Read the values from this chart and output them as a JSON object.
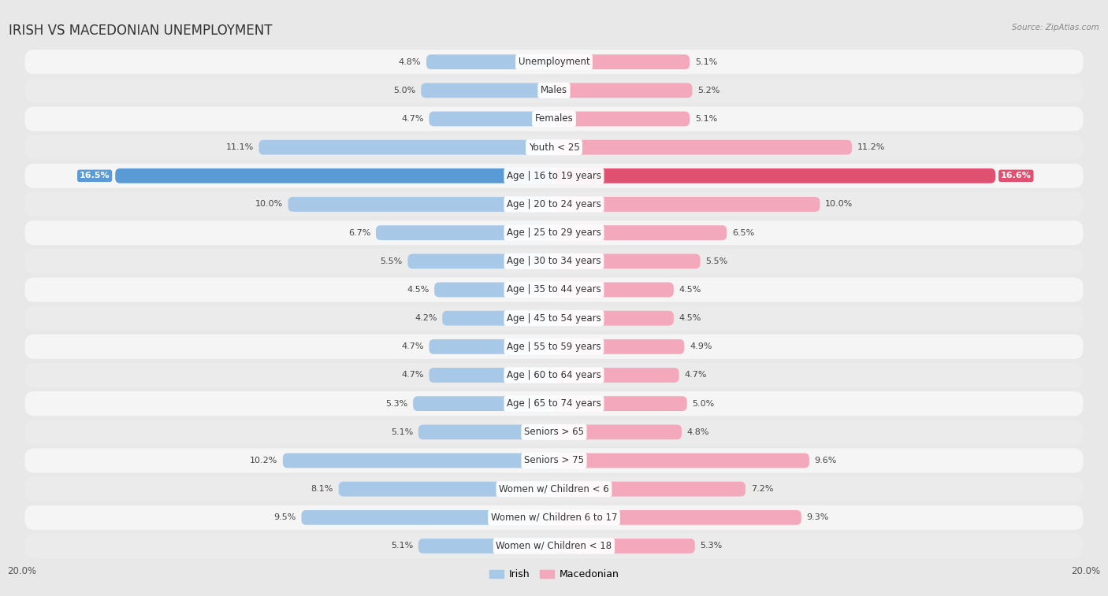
{
  "title": "IRISH VS MACEDONIAN UNEMPLOYMENT",
  "source": "Source: ZipAtlas.com",
  "categories": [
    "Unemployment",
    "Males",
    "Females",
    "Youth < 25",
    "Age | 16 to 19 years",
    "Age | 20 to 24 years",
    "Age | 25 to 29 years",
    "Age | 30 to 34 years",
    "Age | 35 to 44 years",
    "Age | 45 to 54 years",
    "Age | 55 to 59 years",
    "Age | 60 to 64 years",
    "Age | 65 to 74 years",
    "Seniors > 65",
    "Seniors > 75",
    "Women w/ Children < 6",
    "Women w/ Children 6 to 17",
    "Women w/ Children < 18"
  ],
  "irish": [
    4.8,
    5.0,
    4.7,
    11.1,
    16.5,
    10.0,
    6.7,
    5.5,
    4.5,
    4.2,
    4.7,
    4.7,
    5.3,
    5.1,
    10.2,
    8.1,
    9.5,
    5.1
  ],
  "macedonian": [
    5.1,
    5.2,
    5.1,
    11.2,
    16.6,
    10.0,
    6.5,
    5.5,
    4.5,
    4.5,
    4.9,
    4.7,
    5.0,
    4.8,
    9.6,
    7.2,
    9.3,
    5.3
  ],
  "irish_color": "#a8c8e8",
  "macedonian_color": "#f4a8bc",
  "highlight_irish_color": "#5b9bd5",
  "highlight_macedonian_color": "#e05070",
  "background_color": "#e8e8e8",
  "row_bg_color": "#f5f5f5",
  "row_alt_color": "#ebebeb",
  "axis_max": 20.0,
  "bar_height": 0.52,
  "title_fontsize": 12,
  "label_fontsize": 8.5,
  "value_fontsize": 8.0,
  "legend_fontsize": 9
}
